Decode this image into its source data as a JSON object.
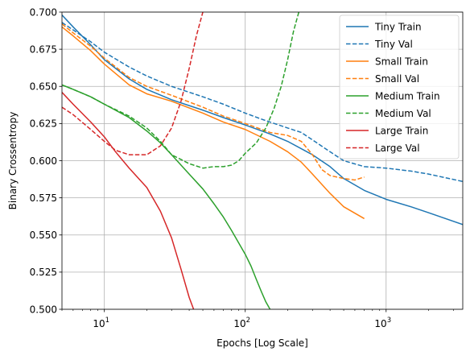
{
  "chart_data": {
    "type": "line",
    "title": "",
    "xlabel": "Epochs [Log Scale]",
    "ylabel": "Binary Crossentropy",
    "xscale": "log",
    "xlim": [
      5,
      3500
    ],
    "ylim": [
      0.5,
      0.7
    ],
    "grid": true,
    "legend_position": "top-right",
    "x_ticks": [
      {
        "value": 10,
        "base": "10",
        "exp": "1"
      },
      {
        "value": 100,
        "base": "10",
        "exp": "2"
      },
      {
        "value": 1000,
        "base": "10",
        "exp": "3"
      }
    ],
    "y_ticks": [
      {
        "value": 0.5,
        "label": "0.500"
      },
      {
        "value": 0.525,
        "label": "0.525"
      },
      {
        "value": 0.55,
        "label": "0.550"
      },
      {
        "value": 0.575,
        "label": "0.575"
      },
      {
        "value": 0.6,
        "label": "0.600"
      },
      {
        "value": 0.625,
        "label": "0.625"
      },
      {
        "value": 0.65,
        "label": "0.650"
      },
      {
        "value": 0.675,
        "label": "0.675"
      },
      {
        "value": 0.7,
        "label": "0.700"
      }
    ],
    "series": [
      {
        "name": "Tiny Train",
        "color": "#1f77b4",
        "style": "solid",
        "x": [
          5,
          6,
          8,
          10,
          15,
          20,
          30,
          50,
          70,
          100,
          150,
          200,
          300,
          400,
          500,
          700,
          1000,
          1500,
          2000,
          3500
        ],
        "y": [
          0.698,
          0.69,
          0.678,
          0.668,
          0.655,
          0.648,
          0.641,
          0.634,
          0.629,
          0.624,
          0.618,
          0.613,
          0.604,
          0.596,
          0.588,
          0.58,
          0.574,
          0.569,
          0.565,
          0.557
        ]
      },
      {
        "name": "Tiny Val",
        "color": "#1f77b4",
        "style": "dashed",
        "x": [
          5,
          6,
          8,
          10,
          15,
          20,
          30,
          50,
          70,
          100,
          130,
          150,
          200,
          250,
          300,
          400,
          500,
          700,
          1000,
          1500,
          2000,
          3500
        ],
        "y": [
          0.693,
          0.688,
          0.68,
          0.673,
          0.663,
          0.657,
          0.65,
          0.643,
          0.638,
          0.632,
          0.628,
          0.626,
          0.622,
          0.619,
          0.614,
          0.606,
          0.6,
          0.596,
          0.595,
          0.593,
          0.591,
          0.586
        ]
      },
      {
        "name": "Small Train",
        "color": "#ff7f0e",
        "style": "solid",
        "x": [
          5,
          6,
          8,
          10,
          15,
          20,
          30,
          50,
          70,
          100,
          150,
          200,
          250,
          300,
          400,
          500,
          700
        ],
        "y": [
          0.69,
          0.684,
          0.674,
          0.665,
          0.651,
          0.645,
          0.64,
          0.632,
          0.626,
          0.621,
          0.613,
          0.606,
          0.599,
          0.591,
          0.578,
          0.569,
          0.561
        ]
      },
      {
        "name": "Small Val",
        "color": "#ff7f0e",
        "style": "dashed",
        "x": [
          5,
          6,
          8,
          10,
          15,
          20,
          30,
          50,
          70,
          100,
          150,
          200,
          250,
          300,
          350,
          400,
          500,
          600,
          700
        ],
        "y": [
          0.692,
          0.686,
          0.677,
          0.669,
          0.656,
          0.65,
          0.644,
          0.636,
          0.63,
          0.625,
          0.619,
          0.617,
          0.613,
          0.604,
          0.594,
          0.59,
          0.588,
          0.587,
          0.589
        ]
      },
      {
        "name": "Medium Train",
        "color": "#2ca02c",
        "style": "solid",
        "x": [
          5,
          6,
          8,
          10,
          15,
          20,
          25,
          30,
          40,
          50,
          60,
          70,
          80,
          100,
          110,
          120,
          130,
          140,
          150
        ],
        "y": [
          0.651,
          0.648,
          0.643,
          0.638,
          0.629,
          0.62,
          0.612,
          0.604,
          0.591,
          0.581,
          0.571,
          0.562,
          0.553,
          0.537,
          0.529,
          0.52,
          0.512,
          0.505,
          0.5
        ]
      },
      {
        "name": "Medium Val",
        "color": "#2ca02c",
        "style": "dashed",
        "x": [
          5,
          6,
          8,
          10,
          15,
          20,
          25,
          30,
          40,
          50,
          60,
          70,
          80,
          90,
          100,
          120,
          140,
          160,
          180,
          200,
          220,
          240
        ],
        "y": [
          0.651,
          0.648,
          0.643,
          0.638,
          0.63,
          0.622,
          0.613,
          0.604,
          0.598,
          0.595,
          0.596,
          0.596,
          0.597,
          0.6,
          0.605,
          0.612,
          0.622,
          0.635,
          0.65,
          0.668,
          0.687,
          0.7
        ]
      },
      {
        "name": "Large Train",
        "color": "#d62728",
        "style": "solid",
        "x": [
          5,
          6,
          8,
          10,
          12,
          15,
          20,
          25,
          30,
          35,
          40,
          43
        ],
        "y": [
          0.646,
          0.638,
          0.626,
          0.616,
          0.606,
          0.595,
          0.582,
          0.566,
          0.548,
          0.527,
          0.508,
          0.5
        ]
      },
      {
        "name": "Large Val",
        "color": "#d62728",
        "style": "dashed",
        "x": [
          5,
          6,
          8,
          10,
          12,
          15,
          20,
          25,
          30,
          35,
          40,
          45,
          50
        ],
        "y": [
          0.636,
          0.631,
          0.621,
          0.613,
          0.607,
          0.604,
          0.604,
          0.61,
          0.622,
          0.64,
          0.662,
          0.684,
          0.7
        ]
      }
    ]
  }
}
